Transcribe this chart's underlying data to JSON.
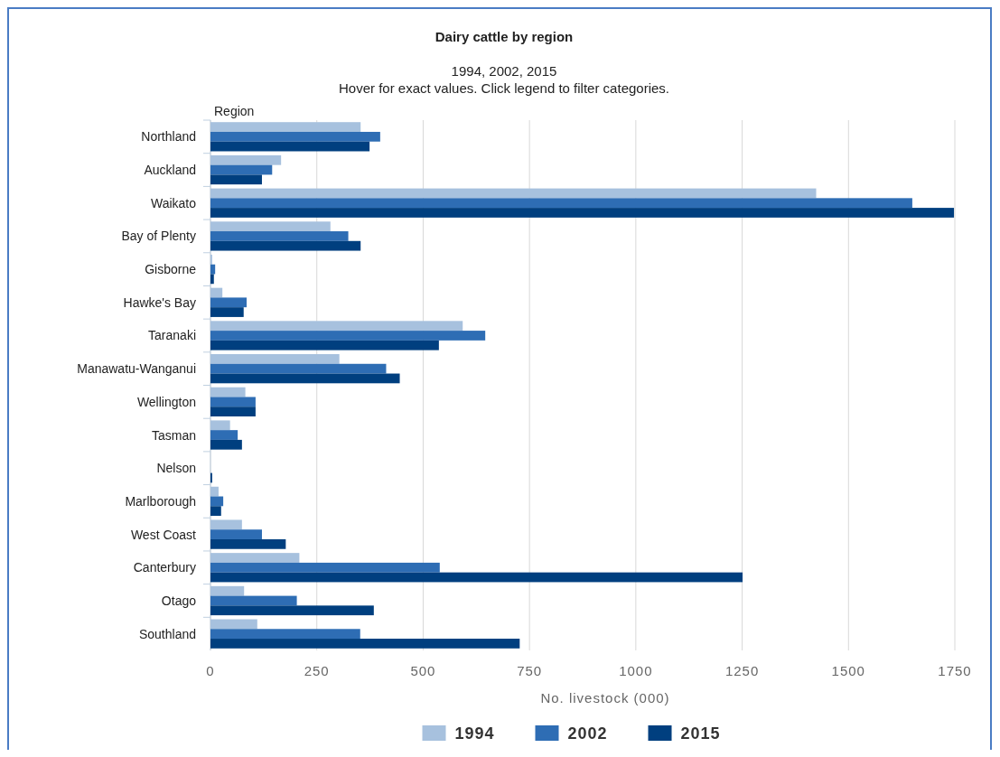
{
  "chart_data": {
    "type": "bar",
    "orientation": "horizontal",
    "title": "Dairy cattle by region",
    "subtitle": "1994, 2002, 2015\nHover for exact values. Click legend to filter categories.",
    "ylabel": "Region",
    "xlabel": "No. livestock (000)",
    "categories": [
      "Northland",
      "Auckland",
      "Waikato",
      "Bay of Plenty",
      "Gisborne",
      "Hawke's Bay",
      "Taranaki",
      "Manawatu-Wanganui",
      "Wellington",
      "Tasman",
      "Nelson",
      "Marlborough",
      "West Coast",
      "Canterbury",
      "Otago",
      "Southland"
    ],
    "series": [
      {
        "name": "1994",
        "color": "#a7c1de",
        "values": [
          353,
          166,
          1424,
          282,
          4,
          28,
          593,
          303,
          82,
          46,
          null,
          19,
          74,
          209,
          79,
          110
        ]
      },
      {
        "name": "2002",
        "color": "#2e6db4",
        "values": [
          399,
          145,
          1650,
          324,
          11,
          85,
          646,
          413,
          106,
          64,
          null,
          30,
          121,
          539,
          203,
          352
        ]
      },
      {
        "name": "2015",
        "color": "#003f7f",
        "values": [
          374,
          121,
          1748,
          353,
          8,
          78,
          537,
          445,
          106,
          74,
          4,
          25,
          177,
          1251,
          384,
          727
        ]
      }
    ],
    "xlim": [
      0,
      1750
    ],
    "xticks": [
      0,
      250,
      500,
      750,
      1000,
      1250,
      1500,
      1750
    ],
    "grid": "x",
    "legend": "bottom"
  }
}
